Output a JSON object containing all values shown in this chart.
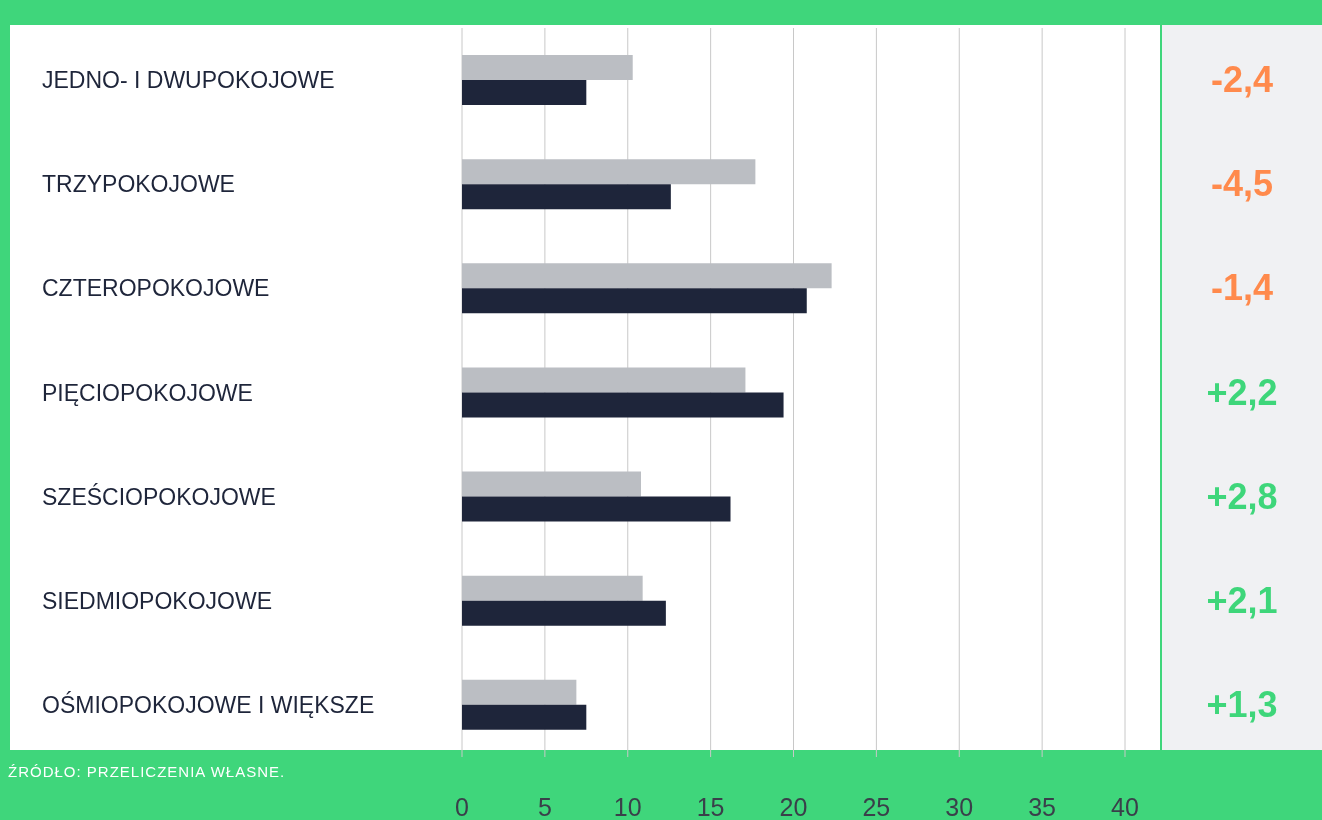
{
  "chart_data": {
    "type": "bar",
    "orientation": "horizontal",
    "categories": [
      "JEDNO- I DWUPOKOJOWE",
      "TRZYPOKOJOWE",
      "CZTEROPOKOJOWE",
      "PIĘCIOPOKOJOWE",
      "SZEŚCIOPOKOJOWE",
      "SIEDMIOPOKOJOWE",
      "OŚMIOPOKOJOWE I WIĘKSZE"
    ],
    "series": [
      {
        "color": "#bbbec3",
        "values": [
          10.3,
          17.7,
          22.3,
          17.1,
          10.8,
          10.9,
          6.9
        ]
      },
      {
        "color": "#1e253a",
        "values": [
          7.5,
          12.6,
          20.8,
          19.4,
          16.2,
          12.3,
          7.5
        ]
      }
    ],
    "xlim": [
      0,
      40
    ],
    "xticks": [
      0,
      5,
      10,
      15,
      20,
      25,
      30,
      35,
      40
    ],
    "grid": "x",
    "annotations": [
      "-2,4",
      "-4,5",
      "-1,4",
      "+2,2",
      "+2,8",
      "+2,1",
      "+1,3",
      "ŹRÓDŁO: PRZELICZENIA WŁASNE."
    ]
  }
}
